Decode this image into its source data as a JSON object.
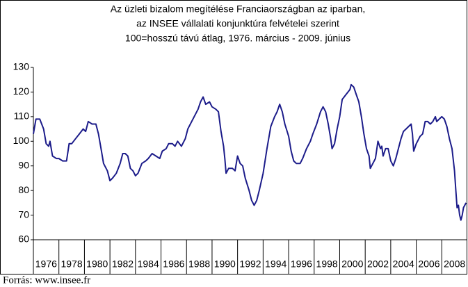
{
  "chart_data": {
    "type": "line",
    "title": "Az üzleti bizalom megítélése Franciaországban az iparban,",
    "subtitle": [
      "az INSEE vállalati konjunktúra felvételei szerint",
      "100=hosszú távú átlag, 1976. március - 2009. június"
    ],
    "source": "Forrás: www.insee.fr",
    "x": [
      1976.0,
      1976.2,
      1976.5,
      1976.8,
      1977.0,
      1977.2,
      1977.3,
      1977.5,
      1977.8,
      1978.0,
      1978.3,
      1978.6,
      1978.8,
      1979.0,
      1979.3,
      1979.6,
      1979.9,
      1980.1,
      1980.3,
      1980.6,
      1980.9,
      1981.1,
      1981.3,
      1981.5,
      1981.8,
      1982.0,
      1982.2,
      1982.5,
      1982.8,
      1983.0,
      1983.2,
      1983.4,
      1983.6,
      1983.8,
      1984.0,
      1984.2,
      1984.5,
      1984.8,
      1985.0,
      1985.3,
      1985.6,
      1985.9,
      1986.1,
      1986.4,
      1986.6,
      1986.9,
      1987.1,
      1987.3,
      1987.6,
      1987.9,
      1988.1,
      1988.4,
      1988.7,
      1988.9,
      1989.1,
      1989.3,
      1989.5,
      1989.8,
      1990.0,
      1990.3,
      1990.5,
      1990.7,
      1990.9,
      1991.0,
      1991.1,
      1991.3,
      1991.6,
      1991.8,
      1992.0,
      1992.2,
      1992.4,
      1992.6,
      1992.9,
      1993.1,
      1993.3,
      1993.5,
      1993.7,
      1994.0,
      1994.3,
      1994.6,
      1994.9,
      1995.1,
      1995.3,
      1995.5,
      1995.7,
      1996.0,
      1996.2,
      1996.4,
      1996.6,
      1996.9,
      1997.1,
      1997.4,
      1997.7,
      1997.9,
      1998.2,
      1998.5,
      1998.7,
      1998.9,
      1999.1,
      1999.3,
      1999.4,
      1999.6,
      1999.8,
      2000.0,
      2000.2,
      2000.5,
      2000.8,
      2000.9,
      2001.1,
      2001.3,
      2001.5,
      2001.7,
      2001.9,
      2002.1,
      2002.3,
      2002.4,
      2002.6,
      2002.8,
      2003.0,
      2003.2,
      2003.3,
      2003.4,
      2003.6,
      2003.8,
      2004.0,
      2004.2,
      2004.4,
      2004.6,
      2004.8,
      2005.0,
      2005.2,
      2005.4,
      2005.6,
      2005.7,
      2005.8,
      2006.0,
      2006.3,
      2006.5,
      2006.7,
      2006.9,
      2007.1,
      2007.3,
      2007.5,
      2007.6,
      2007.8,
      2008.0,
      2008.2,
      2008.4,
      2008.6,
      2008.8,
      2009.0,
      2009.1,
      2009.2,
      2009.3,
      2009.4,
      2009.5,
      2009.6,
      2009.7,
      2009.9
    ],
    "series": [
      {
        "color": "#1c1c8a",
        "values": [
          103,
          109,
          109,
          105,
          99,
          98,
          100,
          94,
          93,
          93,
          92,
          92,
          99,
          99,
          101,
          103,
          105,
          104,
          108,
          107,
          107,
          103,
          97,
          91,
          88,
          84,
          85,
          87,
          91,
          95,
          95,
          94,
          89,
          88,
          86,
          87,
          91,
          92,
          93,
          95,
          94,
          93,
          96,
          97,
          99,
          99,
          98,
          100,
          98,
          101,
          105,
          108,
          111,
          113,
          116,
          118,
          115,
          116,
          114,
          113,
          112,
          104,
          98,
          93,
          87,
          89,
          89,
          88,
          94,
          91,
          90,
          85,
          80,
          76,
          74,
          76,
          80,
          87,
          97,
          106,
          110,
          112,
          115,
          112,
          107,
          102,
          96,
          92,
          91,
          91,
          93,
          97,
          100,
          103,
          107,
          112,
          114,
          112,
          107,
          101,
          97,
          99,
          105,
          110,
          117,
          119,
          121,
          123,
          122,
          119,
          116,
          110,
          103,
          97,
          94,
          89,
          91,
          93,
          100,
          97,
          98,
          94,
          97,
          97,
          92,
          90,
          93,
          97,
          101,
          104,
          105,
          106,
          107,
          103,
          96,
          99,
          102,
          103,
          108,
          108,
          107,
          108,
          110,
          108,
          109,
          110,
          109,
          106,
          101,
          97,
          88,
          80,
          73,
          74,
          70,
          68,
          70,
          73,
          75
        ]
      }
    ],
    "xlim": [
      1976,
      2010
    ],
    "xticks": [
      1976,
      1978,
      1980,
      1982,
      1984,
      1986,
      1988,
      1990,
      1992,
      1994,
      1996,
      1998,
      2000,
      2002,
      2004,
      2006,
      2008
    ],
    "ylim": [
      60,
      130
    ],
    "yticks": [
      60,
      70,
      80,
      90,
      100,
      110,
      120,
      130
    ],
    "grid": false
  }
}
